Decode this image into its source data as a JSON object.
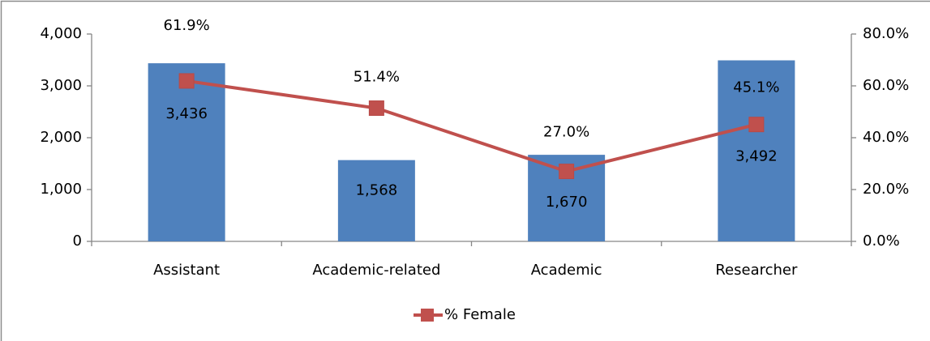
{
  "chart_data": {
    "type": "bar",
    "categories": [
      "Assistant",
      "Academic-related",
      "Academic",
      "Researcher"
    ],
    "series": [
      {
        "type": "bar",
        "color": "#4f81bd",
        "values": [
          3436,
          1568,
          1670,
          3492
        ],
        "value_labels": [
          "3,436",
          "1,568",
          "1,670",
          "3,492"
        ]
      },
      {
        "type": "line",
        "name": "% Female",
        "axis": "y2",
        "color": "#c0504d",
        "values": [
          61.9,
          51.4,
          27.0,
          45.1
        ],
        "value_labels": [
          "61.9%",
          "51.4%",
          "27.0%",
          "45.1%"
        ]
      }
    ],
    "ylim": [
      0,
      4000
    ],
    "yticks": [
      0,
      {
        "value": 1000,
        "label": "1,000"
      },
      {
        "value": 2000,
        "label": "2,000"
      },
      {
        "value": 3000,
        "label": "3,000"
      },
      {
        "value": 4000,
        "label": "4,000"
      }
    ],
    "y2lim": [
      0,
      80
    ],
    "y2ticks": [
      {
        "value": 0,
        "label": "0.0%"
      },
      {
        "value": 20,
        "label": "20.0%"
      },
      {
        "value": 40,
        "label": "40.0%"
      },
      {
        "value": 60,
        "label": "60.0%"
      },
      {
        "value": 80,
        "label": "80.0%"
      }
    ],
    "grid": false,
    "legend": "bottom"
  }
}
